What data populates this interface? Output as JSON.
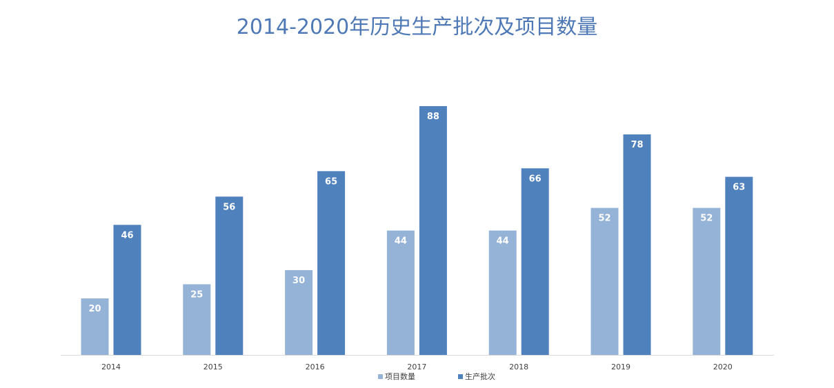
{
  "chart_data": {
    "type": "bar",
    "title": "2014-2020年历史生产批次及项目数量",
    "xlabel": "",
    "ylabel": "",
    "categories": [
      "2014",
      "2015",
      "2016",
      "2017",
      "2018",
      "2019",
      "2020"
    ],
    "series": [
      {
        "name": "项目数量",
        "color": "#95b3d7",
        "values": [
          20,
          25,
          30,
          44,
          44,
          52,
          52
        ]
      },
      {
        "name": "生产批次",
        "color": "#4f81bd",
        "values": [
          46,
          56,
          65,
          88,
          66,
          78,
          63
        ]
      }
    ],
    "ylim": [
      0,
      88
    ],
    "grid": false,
    "data_labels": true,
    "legend_position": "bottom"
  }
}
